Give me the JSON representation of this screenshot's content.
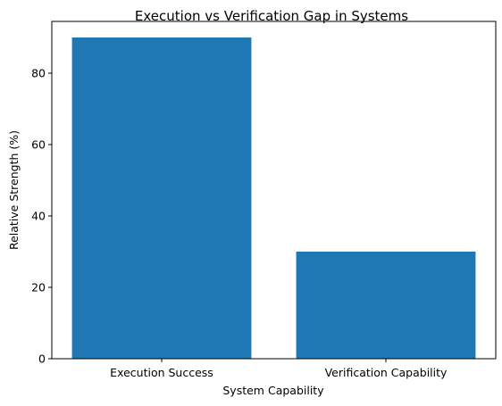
{
  "chart_data": {
    "type": "bar",
    "title": "Execution vs Verification Gap in Systems",
    "xlabel": "System Capability",
    "ylabel": "Relative Strength (%)",
    "categories": [
      "Execution Success",
      "Verification Capability"
    ],
    "values": [
      90,
      30
    ],
    "ylim": [
      0,
      94.5
    ],
    "yticks": [
      0,
      20,
      40,
      60,
      80
    ],
    "grid": false,
    "colors": {
      "bar": "#1f77b4",
      "axes": "#000000",
      "background": "#ffffff"
    }
  }
}
